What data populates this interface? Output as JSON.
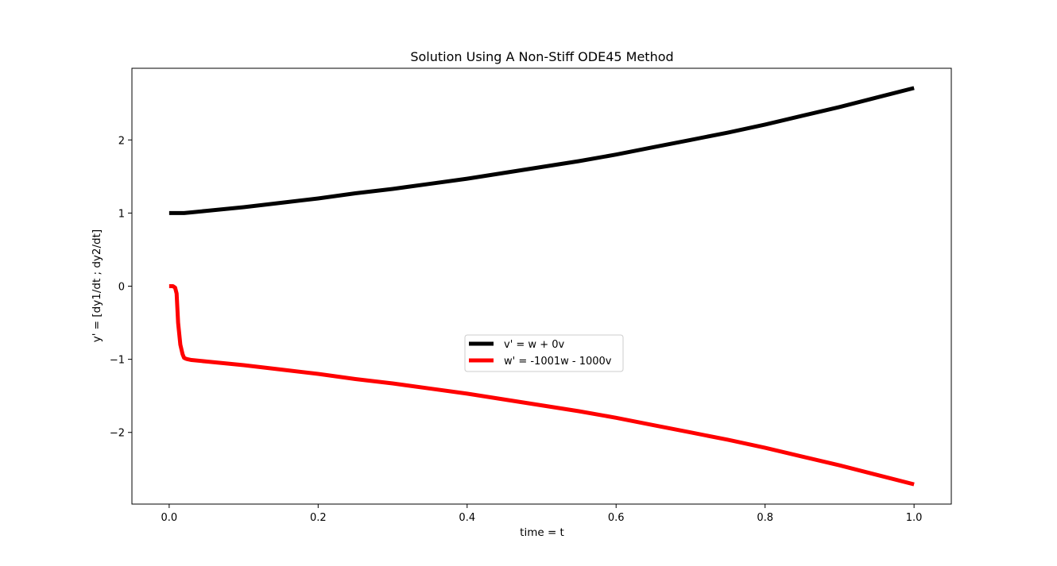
{
  "chart_data": {
    "type": "line",
    "title": "Solution Using A Non-Stiff ODE45 Method",
    "xlabel": "time = t",
    "ylabel": "y' = [dy1/dt ; dy2/dt]",
    "xlim": [
      -0.05,
      1.05
    ],
    "ylim": [
      -2.98,
      2.98
    ],
    "xticks": [
      0.0,
      0.2,
      0.4,
      0.6,
      0.8,
      1.0
    ],
    "xtick_labels": [
      "0.0",
      "0.2",
      "0.4",
      "0.6",
      "0.8",
      "1.0"
    ],
    "yticks": [
      -2,
      -1,
      0,
      1,
      2
    ],
    "ytick_labels": [
      "−2",
      "−1",
      "0",
      "1",
      "2"
    ],
    "grid": false,
    "legend_position": "center",
    "series": [
      {
        "name": "v' = w + 0v",
        "color": "#000000",
        "x": [
          0.0,
          0.005,
          0.01,
          0.015,
          0.02,
          0.03,
          0.05,
          0.1,
          0.15,
          0.2,
          0.25,
          0.3,
          0.35,
          0.4,
          0.45,
          0.5,
          0.55,
          0.6,
          0.65,
          0.7,
          0.75,
          0.8,
          0.85,
          0.9,
          0.95,
          1.0
        ],
        "y": [
          1.0,
          1.0,
          1.0,
          1.0,
          1.0,
          1.01,
          1.03,
          1.08,
          1.14,
          1.2,
          1.27,
          1.33,
          1.4,
          1.47,
          1.55,
          1.63,
          1.71,
          1.8,
          1.9,
          2.0,
          2.1,
          2.21,
          2.33,
          2.45,
          2.58,
          2.71
        ]
      },
      {
        "name": "w' = -1001w - 1000v",
        "color": "#ff0000",
        "x": [
          0.0,
          0.005,
          0.008,
          0.01,
          0.012,
          0.015,
          0.018,
          0.02,
          0.022,
          0.025,
          0.03,
          0.05,
          0.1,
          0.15,
          0.2,
          0.25,
          0.3,
          0.35,
          0.4,
          0.45,
          0.5,
          0.55,
          0.6,
          0.65,
          0.7,
          0.75,
          0.8,
          0.85,
          0.9,
          0.95,
          1.0
        ],
        "y": [
          0.0,
          0.0,
          -0.02,
          -0.1,
          -0.5,
          -0.8,
          -0.93,
          -0.98,
          -0.99,
          -1.0,
          -1.01,
          -1.03,
          -1.08,
          -1.14,
          -1.2,
          -1.27,
          -1.33,
          -1.4,
          -1.47,
          -1.55,
          -1.63,
          -1.71,
          -1.8,
          -1.9,
          -2.0,
          -2.1,
          -2.21,
          -2.33,
          -2.45,
          -2.58,
          -2.71
        ]
      }
    ]
  }
}
